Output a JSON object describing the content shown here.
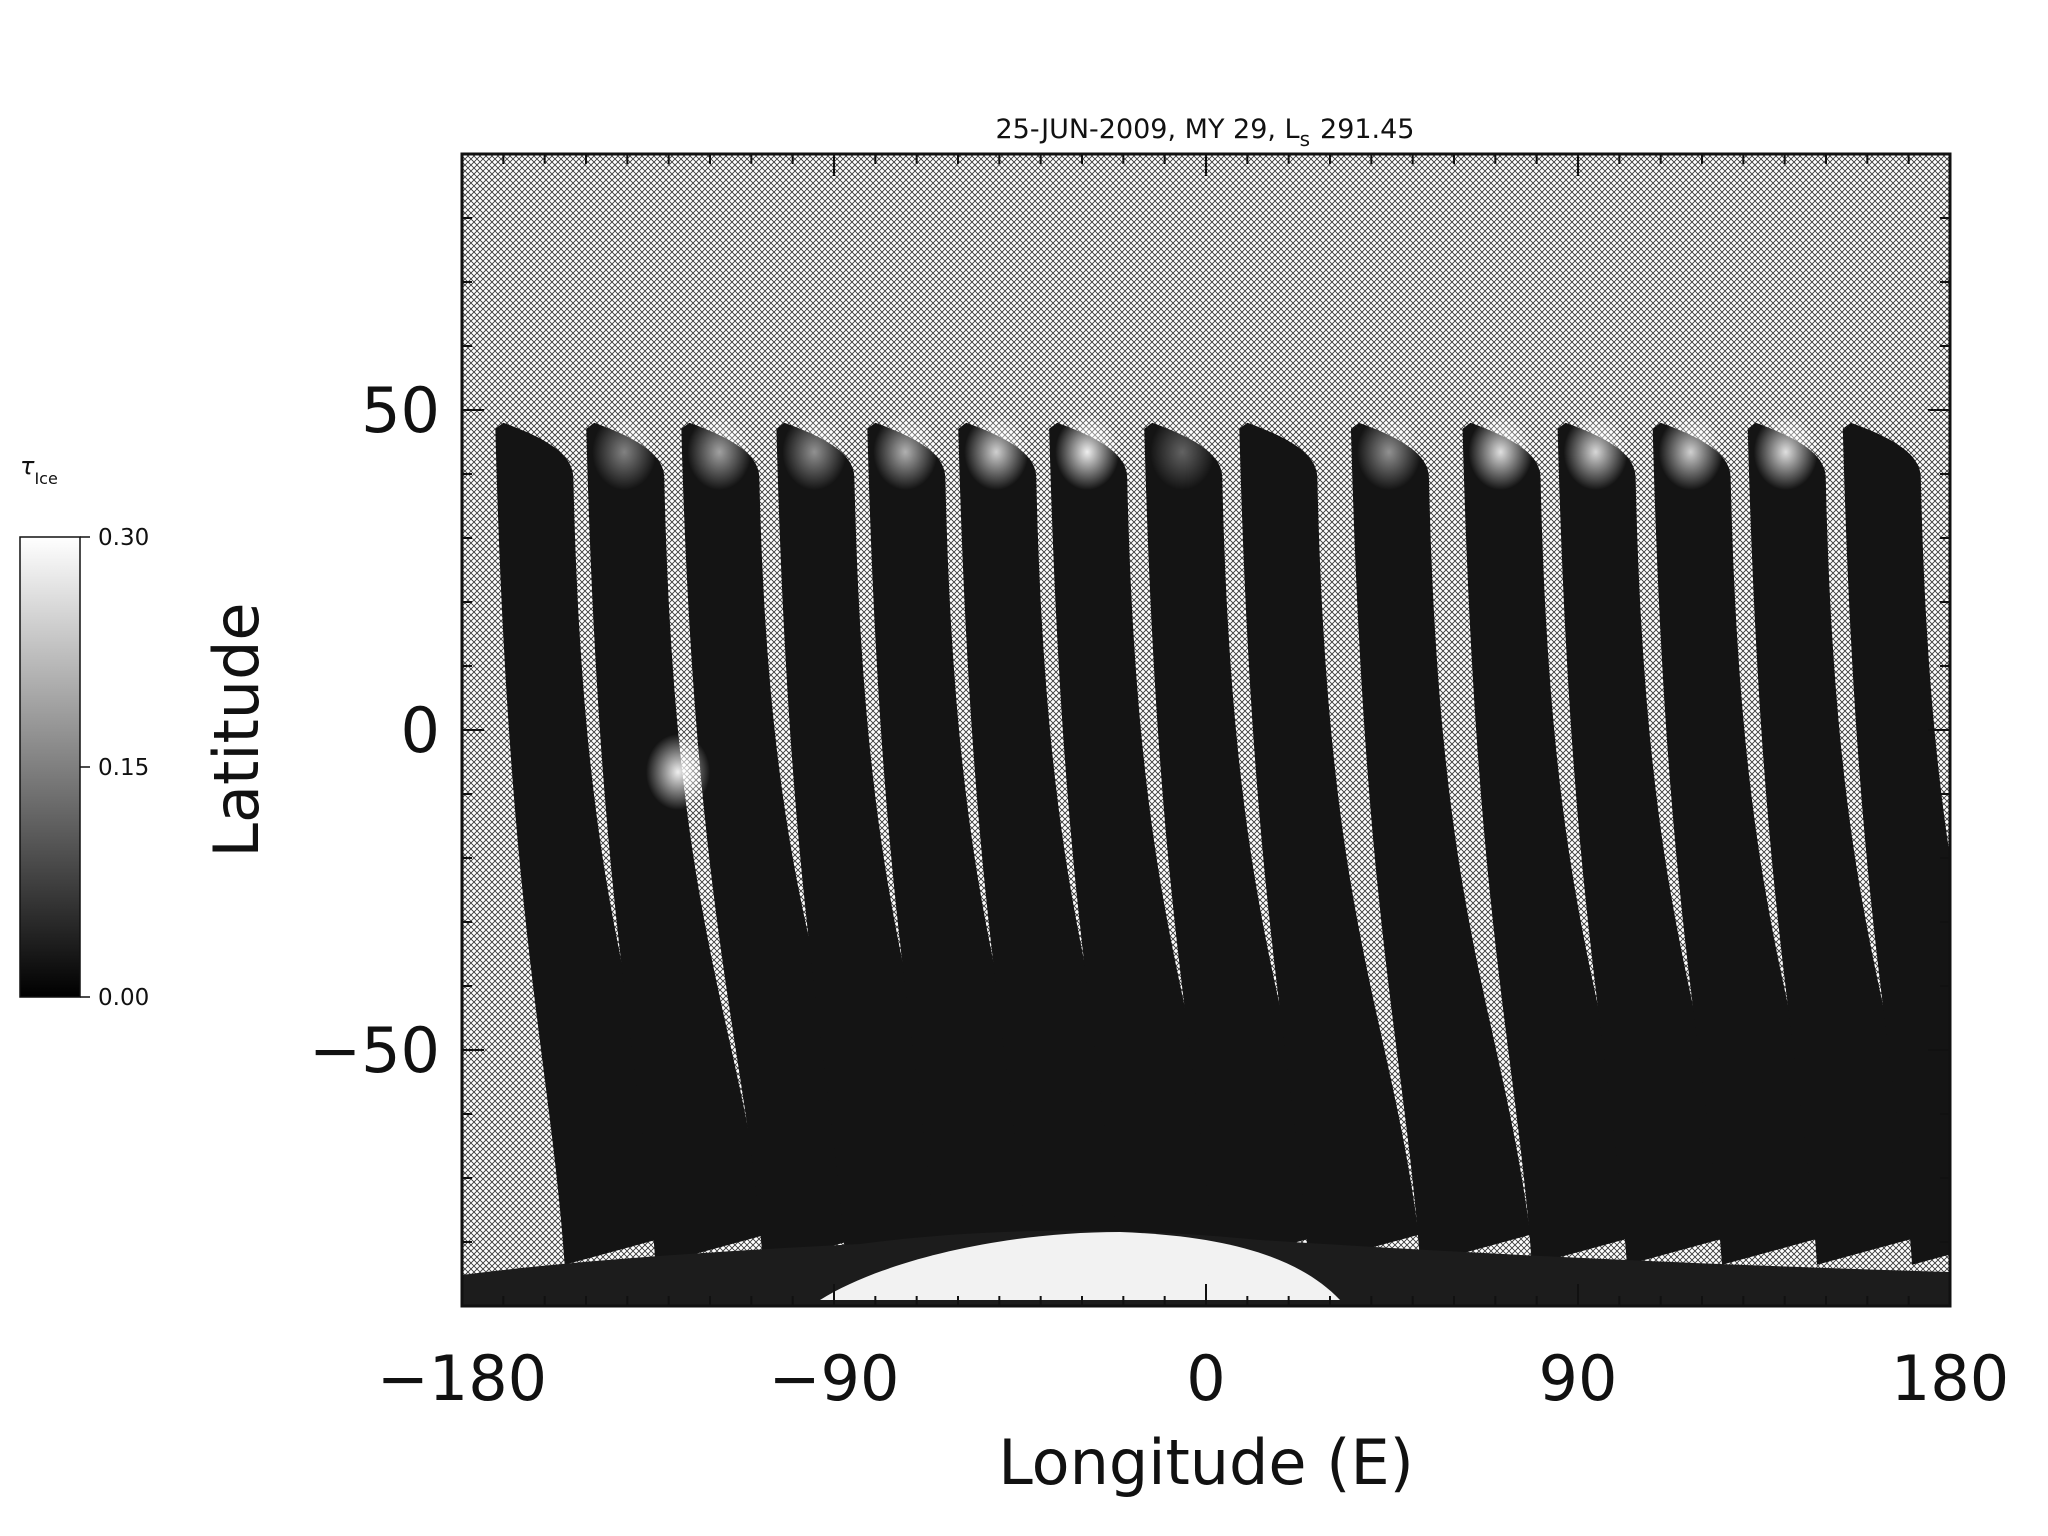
{
  "chart_data": {
    "type": "heatmap",
    "title": "25-JUN-2009, MY 29,  L",
    "title_sub": "s",
    "title_value": "291.45",
    "xlabel": "Longitude (E)",
    "ylabel": "Latitude",
    "xlim": [
      -180,
      180
    ],
    "ylim": [
      -90,
      90
    ],
    "xticks": [
      -180,
      -90,
      0,
      90,
      180
    ],
    "xtick_labels": [
      "−180",
      "−90",
      "0",
      "90",
      "180"
    ],
    "yticks": [
      50,
      0,
      -50
    ],
    "ytick_labels": [
      "50",
      "0",
      "−50"
    ],
    "colorbar": {
      "label": "τ",
      "label_sub": "Ice",
      "min": 0.0,
      "max": 0.3,
      "ticks": [
        0.0,
        0.15,
        0.3
      ],
      "tick_labels": [
        "0.00",
        "0.15",
        "0.30"
      ],
      "colormap": "grayscale"
    },
    "no_data_pattern": "crosshatch",
    "swaths": [
      {
        "lon_top": -170,
        "lat_top": 48,
        "lon_bottom": -160
      },
      {
        "lon_top": -148,
        "lat_top": 48,
        "lon_bottom": -138
      },
      {
        "lon_top": -125,
        "lat_top": 48,
        "lon_bottom": -112
      },
      {
        "lon_top": -102,
        "lat_top": 48,
        "lon_bottom": -92
      },
      {
        "lon_top": -80,
        "lat_top": 48,
        "lon_bottom": -70
      },
      {
        "lon_top": -58,
        "lat_top": 48,
        "lon_bottom": -48
      },
      {
        "lon_top": -36,
        "lat_top": 48,
        "lon_bottom": -26
      },
      {
        "lon_top": -13,
        "lat_top": 48,
        "lon_bottom": -3
      },
      {
        "lon_top": 10,
        "lat_top": 48,
        "lon_bottom": 20
      },
      {
        "lon_top": 37,
        "lat_top": 48,
        "lon_bottom": 47
      },
      {
        "lon_top": 64,
        "lat_top": 48,
        "lon_bottom": 74
      },
      {
        "lon_top": 87,
        "lat_top": 48,
        "lon_bottom": 97
      },
      {
        "lon_top": 110,
        "lat_top": 48,
        "lon_bottom": 120
      },
      {
        "lon_top": 133,
        "lat_top": 48,
        "lon_bottom": 143
      },
      {
        "lon_top": 156,
        "lat_top": 48,
        "lon_bottom": 166
      }
    ],
    "bright_regions": [
      {
        "lon": -148,
        "lat": 45,
        "value": 0.14
      },
      {
        "lon": -125,
        "lat": 45,
        "value": 0.18
      },
      {
        "lon": -102,
        "lat": 45,
        "value": 0.16
      },
      {
        "lon": -80,
        "lat": 45,
        "value": 0.2
      },
      {
        "lon": -58,
        "lat": 45,
        "value": 0.24
      },
      {
        "lon": -36,
        "lat": 45,
        "value": 0.28
      },
      {
        "lon": -13,
        "lat": 45,
        "value": 0.1
      },
      {
        "lon": 37,
        "lat": 45,
        "value": 0.16
      },
      {
        "lon": 64,
        "lat": 45,
        "value": 0.26
      },
      {
        "lon": 87,
        "lat": 45,
        "value": 0.25
      },
      {
        "lon": 110,
        "lat": 45,
        "value": 0.24
      },
      {
        "lon": 133,
        "lat": 45,
        "value": 0.26
      },
      {
        "lon": -135,
        "lat": -5,
        "value": 0.28
      },
      {
        "lon": -10,
        "lat": -85,
        "value": 0.3
      }
    ]
  }
}
